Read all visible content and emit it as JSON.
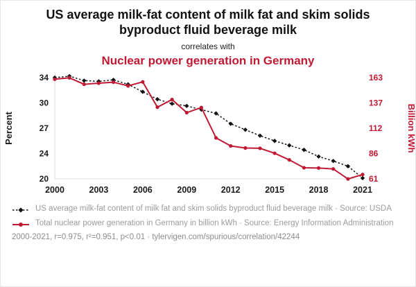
{
  "header": {
    "title": "US average milk-fat content of milk fat and skim solids byproduct fluid beverage milk",
    "connector": "correlates with",
    "subtitle": "Nuclear power generation in Germany"
  },
  "colors": {
    "accent_red": "#c01933",
    "series_black": "#111111",
    "legend_gray": "#9b9b9b"
  },
  "chart_data": {
    "type": "line",
    "x": [
      2000,
      2001,
      2002,
      2003,
      2004,
      2005,
      2006,
      2007,
      2008,
      2009,
      2010,
      2011,
      2012,
      2013,
      2014,
      2015,
      2016,
      2017,
      2018,
      2019,
      2020,
      2021
    ],
    "x_domain": [
      2000,
      2021
    ],
    "x_ticks": [
      2000,
      2003,
      2006,
      2009,
      2012,
      2015,
      2018,
      2021
    ],
    "left_axis": {
      "label": "Percent",
      "tick_labels": [
        "34",
        "30",
        "27",
        "24",
        "20"
      ],
      "domain": [
        20.2,
        33.8
      ],
      "color": "#1a1a1a"
    },
    "right_axis": {
      "label": "Billion kWh",
      "tick_labels": [
        "163",
        "137",
        "112",
        "86",
        "61"
      ],
      "domain": [
        61,
        163
      ],
      "color": "#c01933"
    },
    "grid": false,
    "legend_position": "bottom",
    "series": [
      {
        "name": "US average milk-fat content of milk fat and skim solids byproduct fluid beverage milk",
        "axis": "left",
        "color": "#111111",
        "line": "dashed",
        "marker": "diamond",
        "values": [
          33.8,
          34.0,
          33.4,
          33.3,
          33.5,
          32.9,
          31.9,
          30.9,
          30.3,
          30.0,
          29.5,
          29.0,
          27.6,
          26.8,
          26.0,
          25.3,
          24.7,
          24.1,
          23.2,
          22.6,
          21.9,
          20.3
        ]
      },
      {
        "name": "Total nuclear power generation in Germany in billion kWh",
        "axis": "right",
        "color": "#c01933",
        "line": "solid",
        "marker": "dot",
        "values": [
          161.4,
          162.8,
          156.3,
          157.4,
          158.4,
          154.7,
          158.7,
          133.2,
          140.9,
          127.7,
          132.9,
          102.3,
          94.2,
          92.1,
          91.8,
          86.8,
          80.1,
          72.2,
          71.9,
          71.0,
          60.9,
          65.4
        ]
      }
    ]
  },
  "legend": {
    "items": [
      {
        "text": "US average milk-fat content of milk fat and skim solids byproduct fluid beverage milk · Source: USDA"
      },
      {
        "text": "Total nuclear power generation in Germany in billion kWh · Source: Energy Information Administration"
      }
    ]
  },
  "footer": {
    "text": "2000-2021, r=0.975, r²=0.951, p<0.01 · tylervigen.com/spurious/correlation/42244"
  }
}
